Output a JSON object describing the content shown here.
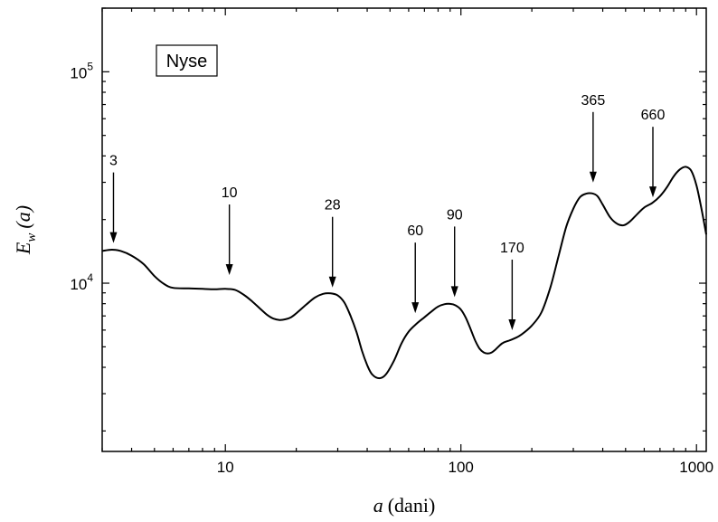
{
  "chart_data": {
    "type": "line",
    "legend_box": "Nyse",
    "xlabel": {
      "var": "a",
      "unit": "(dani)"
    },
    "ylabel": {
      "var": "E",
      "sub": "w",
      "arg": "(a)"
    },
    "x_scale": "log",
    "y_scale": "log",
    "xlim": [
      3,
      1100
    ],
    "ylim": [
      1600,
      200000
    ],
    "x_ticks": [
      {
        "value": 10,
        "label": "10"
      },
      {
        "value": 100,
        "label": "100"
      },
      {
        "value": 1000,
        "label": "1000"
      }
    ],
    "y_ticks": [
      {
        "value": 10000,
        "base": "10",
        "exp": "4"
      },
      {
        "value": 100000,
        "base": "10",
        "exp": "5"
      }
    ],
    "grid": false,
    "series": [
      {
        "x": [
          3,
          3.3,
          3.6,
          4,
          4.5,
          5,
          5.5,
          6,
          7,
          8,
          9,
          10,
          11,
          12,
          13,
          14,
          15,
          16,
          17,
          18,
          19,
          20,
          22,
          24,
          26,
          28,
          30,
          32,
          34,
          36,
          38,
          40,
          42,
          45,
          48,
          52,
          56,
          60,
          65,
          70,
          75,
          80,
          85,
          90,
          95,
          100,
          105,
          110,
          115,
          120,
          125,
          130,
          135,
          140,
          150,
          160,
          170,
          180,
          200,
          220,
          240,
          260,
          280,
          300,
          320,
          340,
          360,
          380,
          400,
          430,
          460,
          490,
          520,
          560,
          600,
          650,
          700,
          750,
          800,
          850,
          900,
          950,
          1000,
          1050,
          1100
        ],
        "y": [
          14200,
          14400,
          14200,
          13500,
          12300,
          10800,
          9900,
          9500,
          9450,
          9400,
          9350,
          9400,
          9300,
          8800,
          8200,
          7600,
          7100,
          6800,
          6700,
          6750,
          6900,
          7200,
          7900,
          8550,
          8900,
          8950,
          8750,
          8100,
          7000,
          5900,
          4800,
          4100,
          3700,
          3550,
          3700,
          4300,
          5200,
          5900,
          6450,
          6900,
          7350,
          7750,
          7950,
          7980,
          7850,
          7500,
          6850,
          6050,
          5350,
          4900,
          4700,
          4650,
          4700,
          4850,
          5200,
          5350,
          5500,
          5700,
          6300,
          7300,
          9600,
          13500,
          18500,
          22500,
          25500,
          26500,
          26600,
          25800,
          23500,
          20500,
          19100,
          18800,
          19500,
          21200,
          22800,
          24000,
          25800,
          28500,
          32000,
          34500,
          35500,
          34000,
          29000,
          22500,
          17000
        ]
      }
    ],
    "annotations": [
      {
        "label": "3",
        "x": 3.35,
        "y_tip": 14600
      },
      {
        "label": "10",
        "x": 10.4,
        "y_tip": 10300
      },
      {
        "label": "28",
        "x": 28.5,
        "y_tip": 9000
      },
      {
        "label": "60",
        "x": 64,
        "y_tip": 6800
      },
      {
        "label": "90",
        "x": 94,
        "y_tip": 8100
      },
      {
        "label": "170",
        "x": 165,
        "y_tip": 5650
      },
      {
        "label": "365",
        "x": 364,
        "y_tip": 28200
      },
      {
        "label": "660",
        "x": 653,
        "y_tip": 24000
      }
    ]
  }
}
